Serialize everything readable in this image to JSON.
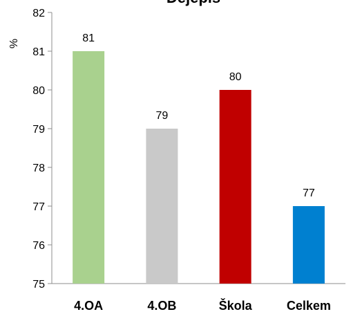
{
  "chart_data": {
    "type": "bar",
    "title": "Dějepis",
    "ylabel": "%",
    "xlabel": "",
    "categories": [
      "4.OA",
      "4.OB",
      "Škola",
      "Celkem"
    ],
    "values": [
      81,
      79,
      80,
      77
    ],
    "data_labels": [
      "81",
      "79",
      "80",
      "77"
    ],
    "colors": [
      "#a9d18e",
      "#c9c9c9",
      "#c00000",
      "#0080d0"
    ],
    "ylim": [
      75,
      82
    ],
    "yticks": [
      "75",
      "76",
      "77",
      "78",
      "79",
      "80",
      "81",
      "82"
    ],
    "grid": false,
    "legend": "none"
  }
}
